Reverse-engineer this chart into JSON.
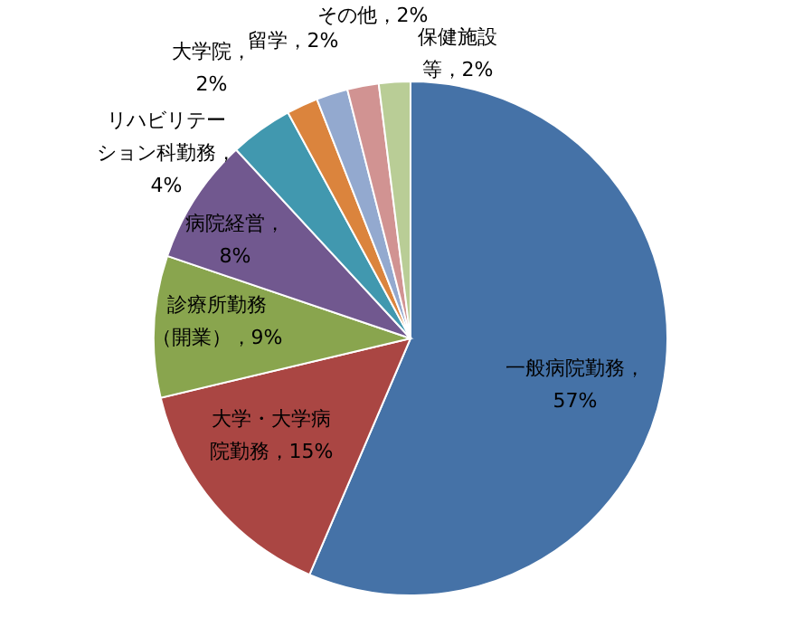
{
  "chart_data": {
    "type": "pie",
    "categories": [
      "一般病院勤務",
      "大学・大学病院勤務",
      "診療所勤務（開業）",
      "病院経営",
      "リハビリテーション科勤務",
      "大学院",
      "留学",
      "その他",
      "保健施設等"
    ],
    "values": [
      57,
      15,
      9,
      8,
      4,
      2,
      2,
      2,
      2
    ],
    "colors": [
      "#4572a7",
      "#aa4643",
      "#89a54e",
      "#71588f",
      "#4198af",
      "#db843d",
      "#93a9cf",
      "#d19392",
      "#b9cd96"
    ],
    "value_labels": [
      "，57%",
      "，15%",
      "，9%",
      "，8%",
      "，4%",
      "，2%",
      "，2%",
      "，2%",
      "，2%"
    ]
  }
}
